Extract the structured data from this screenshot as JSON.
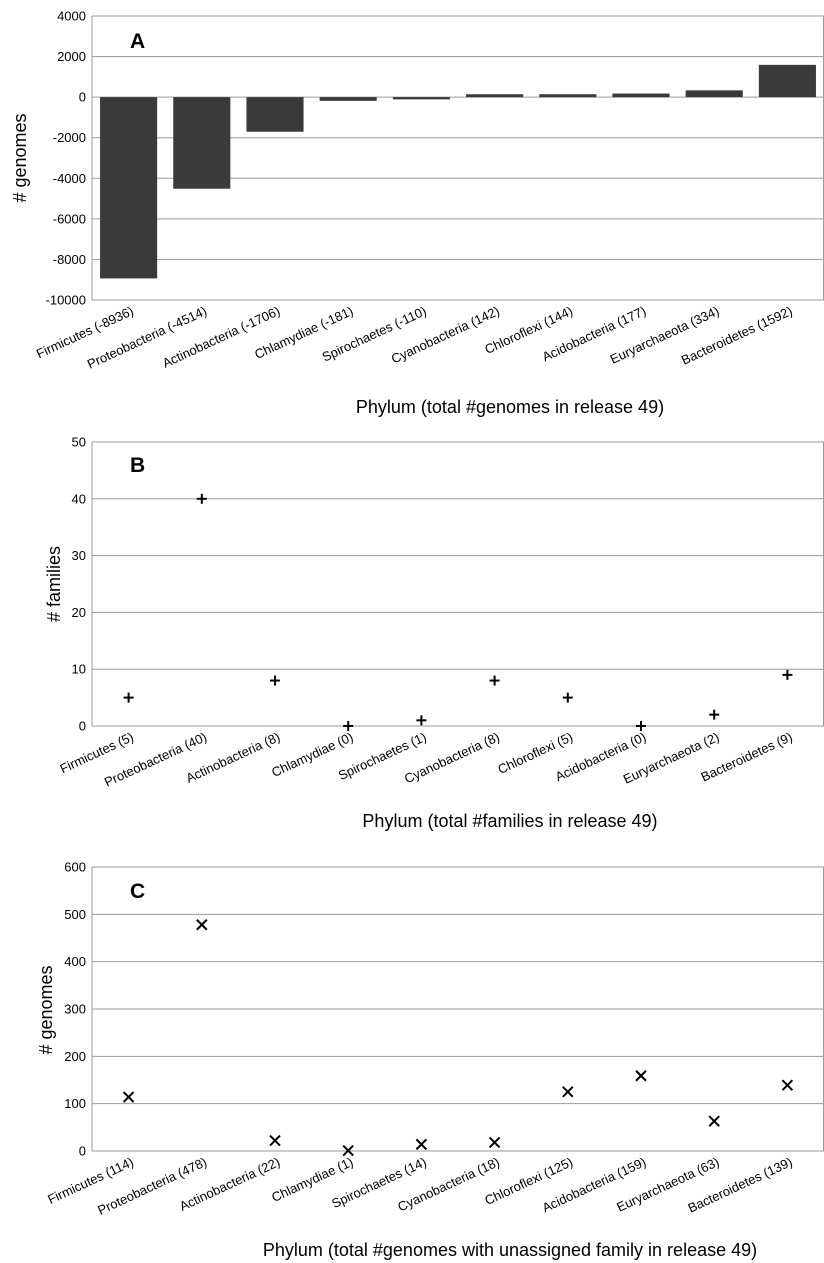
{
  "chart_data": [
    {
      "type": "bar",
      "panel_label": "A",
      "categories": [
        "Firmicutes (-8936)",
        "Proteobacteria (-4514)",
        "Actinobacteria (-1706)",
        "Chlamydiae (-181)",
        "Spirochaetes (-110)",
        "Cyanobacteria (142)",
        "Chloroflexi (144)",
        "Acidobacteria (177)",
        "Euryarchaeota (334)",
        "Bacteroidetes (1592)"
      ],
      "values": [
        -8936,
        -4514,
        -1706,
        -181,
        -110,
        142,
        144,
        177,
        334,
        1592
      ],
      "ylabel": "# genomes",
      "xlabel": "Phylum (total #genomes in release 49)",
      "ylim": [
        -10000,
        4000
      ],
      "yticks": [
        -10000,
        -8000,
        -6000,
        -4000,
        -2000,
        0,
        2000,
        4000
      ],
      "grid": true,
      "colors": {
        "bar": "#3a3a3a"
      }
    },
    {
      "type": "scatter",
      "panel_label": "B",
      "marker": "+",
      "categories": [
        "Firmicutes (5)",
        "Proteobacteria (40)",
        "Actinobacteria (8)",
        "Chlamydiae (0)",
        "Spirochaetes (1)",
        "Cyanobacteria (8)",
        "Chloroflexi (5)",
        "Acidobacteria (0)",
        "Euryarchaeota (2)",
        "Bacteroidetes (9)"
      ],
      "values": [
        5,
        40,
        8,
        0,
        1,
        8,
        5,
        0,
        2,
        9
      ],
      "ylabel": "# families",
      "xlabel": "Phylum (total #families in release 49)",
      "ylim": [
        0,
        50
      ],
      "yticks": [
        0,
        10,
        20,
        30,
        40,
        50
      ],
      "grid": true
    },
    {
      "type": "scatter",
      "panel_label": "C",
      "marker": "x",
      "categories": [
        "Firmicutes (114)",
        "Proteobacteria (478)",
        "Actinobacteria (22)",
        "Chlamydiae (1)",
        "Spirochaetes (14)",
        "Cyanobacteria (18)",
        "Chloroflexi (125)",
        "Acidobacteria (159)",
        "Euryarchaeota (63)",
        "Bacteroidetes (139)"
      ],
      "values": [
        114,
        478,
        22,
        1,
        14,
        18,
        125,
        159,
        63,
        139
      ],
      "ylabel": "# genomes",
      "xlabel": "Phylum (total #genomes with unassigned family in release 49)",
      "ylim": [
        0,
        600
      ],
      "yticks": [
        0,
        100,
        200,
        300,
        400,
        500,
        600
      ],
      "grid": true
    }
  ]
}
